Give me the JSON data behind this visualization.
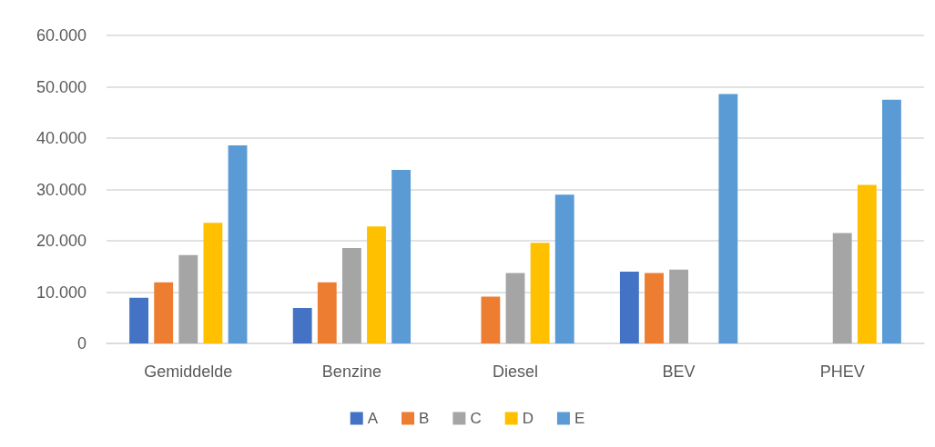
{
  "chart_data": {
    "type": "bar",
    "categories": [
      "Gemiddelde",
      "Benzine",
      "Diesel",
      "BEV",
      "PHEV"
    ],
    "series": [
      {
        "name": "A",
        "color": "#4472c4",
        "values": [
          8900,
          6900,
          null,
          14000,
          null
        ]
      },
      {
        "name": "B",
        "color": "#ed7d31",
        "values": [
          11900,
          11900,
          9100,
          13700,
          null
        ]
      },
      {
        "name": "C",
        "color": "#a5a5a5",
        "values": [
          17200,
          18600,
          13700,
          14400,
          21500
        ]
      },
      {
        "name": "D",
        "color": "#ffc000",
        "values": [
          23500,
          22800,
          19600,
          null,
          30900
        ]
      },
      {
        "name": "E",
        "color": "#5b9bd5",
        "values": [
          38600,
          33800,
          29000,
          48600,
          47500
        ]
      }
    ],
    "ylim": [
      0,
      60000
    ],
    "yticks": [
      {
        "value": 0,
        "label": "0"
      },
      {
        "value": 10000,
        "label": "10.000"
      },
      {
        "value": 20000,
        "label": "20.000"
      },
      {
        "value": 30000,
        "label": "30.000"
      },
      {
        "value": 40000,
        "label": "40.000"
      },
      {
        "value": 50000,
        "label": "50.000"
      },
      {
        "value": 60000,
        "label": "60.000"
      }
    ],
    "grid": "y",
    "legend": "bottom"
  }
}
